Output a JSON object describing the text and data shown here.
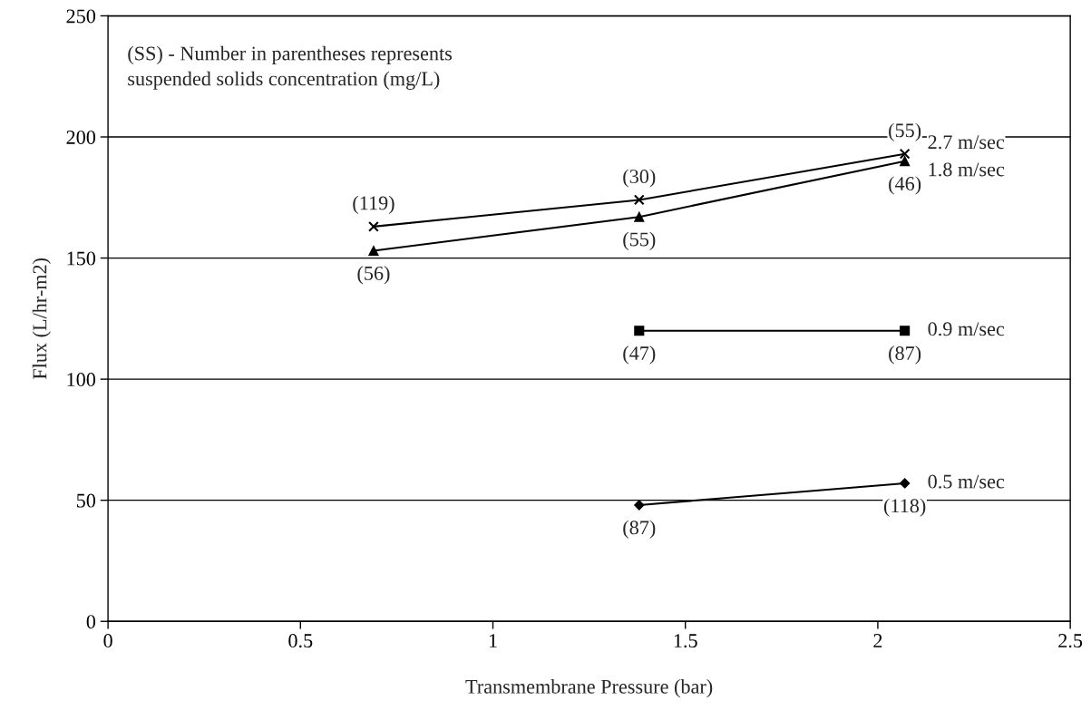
{
  "chart_data": {
    "type": "line",
    "xlabel": "Transmembrane Pressure (bar)",
    "ylabel": "Flux (L/hr-m2)",
    "xlim": [
      0,
      2.5
    ],
    "xticks": [
      0,
      0.5,
      1,
      1.5,
      2,
      2.5
    ],
    "ylim": [
      0,
      250
    ],
    "yticks": [
      0,
      50,
      100,
      150,
      200,
      250
    ],
    "grid": "y",
    "legend": false,
    "series": [
      {
        "name": "2.7 m/sec",
        "color": "#000000",
        "marker": "cross",
        "x": [
          0.69,
          1.38,
          2.07
        ],
        "values": [
          163,
          174,
          193
        ]
      },
      {
        "name": "1.8 m/sec",
        "color": "#000000",
        "marker": "triangle",
        "x": [
          0.69,
          1.38,
          2.07
        ],
        "values": [
          153,
          167,
          190
        ]
      },
      {
        "name": "0.9 m/sec",
        "color": "#000000",
        "marker": "square",
        "x": [
          1.38,
          2.07
        ],
        "values": [
          120,
          120
        ]
      },
      {
        "name": "0.5 m/sec",
        "color": "#000000",
        "marker": "diamond",
        "x": [
          1.38,
          2.07
        ],
        "values": [
          48,
          57
        ]
      }
    ],
    "annotations": [
      "(SS) - Number in parentheses represents\nsuspended solids concentration (mg/L)",
      {
        "text": "(119)",
        "x": 0.69,
        "y": 163
      },
      {
        "text": "(30)",
        "x": 1.38,
        "y": 174
      },
      {
        "text": "(55)",
        "x": 2.07,
        "y": 193
      },
      {
        "text": "(56)",
        "x": 0.69,
        "y": 153
      },
      {
        "text": "(55)",
        "x": 1.38,
        "y": 167
      },
      {
        "text": "(46)",
        "x": 2.07,
        "y": 190
      },
      {
        "text": "(47)",
        "x": 1.38,
        "y": 120
      },
      {
        "text": "(87)",
        "x": 2.07,
        "y": 120
      },
      {
        "text": "(87)",
        "x": 1.38,
        "y": 48
      },
      {
        "text": "(118)",
        "x": 2.07,
        "y": 57
      }
    ]
  }
}
